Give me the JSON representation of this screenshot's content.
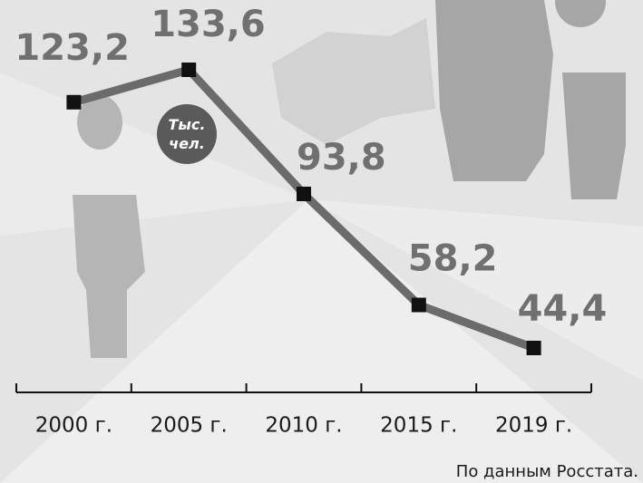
{
  "chart_data": {
    "type": "line",
    "categories": [
      "2000 г.",
      "2005 г.",
      "2010 г.",
      "2015 г.",
      "2019 г."
    ],
    "values": [
      123.2,
      133.6,
      93.8,
      58.2,
      44.4
    ],
    "value_labels": [
      "123,2",
      "133,6",
      "93,8",
      "58,2",
      "44,4"
    ],
    "unit_label": [
      "Тыс.",
      "чел."
    ],
    "source": "По данным Росстата.",
    "color": "#6b6b6b",
    "marker_color": "#111111"
  }
}
